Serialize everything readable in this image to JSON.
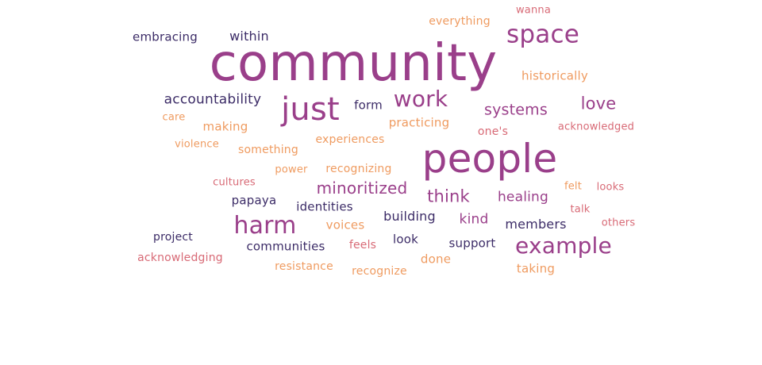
{
  "palette": {
    "dark_purple": "#3c2c67",
    "magenta": "#9a3f8a",
    "pink": "#d86a76",
    "orange": "#ef9b60"
  },
  "words": [
    {
      "text": "community",
      "color": "magenta"
    },
    {
      "text": "people",
      "color": "magenta"
    },
    {
      "text": "just",
      "color": "magenta"
    },
    {
      "text": "space",
      "color": "magenta"
    },
    {
      "text": "work",
      "color": "magenta"
    },
    {
      "text": "harm",
      "color": "magenta"
    },
    {
      "text": "example",
      "color": "magenta"
    },
    {
      "text": "love",
      "color": "magenta"
    },
    {
      "text": "minoritized",
      "color": "magenta"
    },
    {
      "text": "think",
      "color": "magenta"
    },
    {
      "text": "systems",
      "color": "magenta"
    },
    {
      "text": "healing",
      "color": "magenta"
    },
    {
      "text": "kind",
      "color": "magenta"
    },
    {
      "text": "accountability",
      "color": "dark_purple"
    },
    {
      "text": "within",
      "color": "dark_purple"
    },
    {
      "text": "embracing",
      "color": "dark_purple"
    },
    {
      "text": "form",
      "color": "dark_purple"
    },
    {
      "text": "members",
      "color": "dark_purple"
    },
    {
      "text": "building",
      "color": "dark_purple"
    },
    {
      "text": "identities",
      "color": "dark_purple"
    },
    {
      "text": "papaya",
      "color": "dark_purple"
    },
    {
      "text": "project",
      "color": "dark_purple"
    },
    {
      "text": "communities",
      "color": "dark_purple"
    },
    {
      "text": "look",
      "color": "dark_purple"
    },
    {
      "text": "support",
      "color": "dark_purple"
    },
    {
      "text": "everything",
      "color": "orange"
    },
    {
      "text": "wanna",
      "color": "pink"
    },
    {
      "text": "historically",
      "color": "orange"
    },
    {
      "text": "acknowledged",
      "color": "pink"
    },
    {
      "text": "one's",
      "color": "pink"
    },
    {
      "text": "practicing",
      "color": "orange"
    },
    {
      "text": "care",
      "color": "orange"
    },
    {
      "text": "making",
      "color": "orange"
    },
    {
      "text": "violence",
      "color": "orange"
    },
    {
      "text": "something",
      "color": "orange"
    },
    {
      "text": "experiences",
      "color": "orange"
    },
    {
      "text": "power",
      "color": "orange"
    },
    {
      "text": "recognizing",
      "color": "orange"
    },
    {
      "text": "cultures",
      "color": "pink"
    },
    {
      "text": "felt",
      "color": "orange"
    },
    {
      "text": "looks",
      "color": "pink"
    },
    {
      "text": "talk",
      "color": "pink"
    },
    {
      "text": "others",
      "color": "pink"
    },
    {
      "text": "voices",
      "color": "orange"
    },
    {
      "text": "feels",
      "color": "pink"
    },
    {
      "text": "done",
      "color": "orange"
    },
    {
      "text": "taking",
      "color": "orange"
    },
    {
      "text": "acknowledging",
      "color": "pink"
    },
    {
      "text": "resistance",
      "color": "orange"
    },
    {
      "text": "recognize",
      "color": "orange"
    }
  ]
}
